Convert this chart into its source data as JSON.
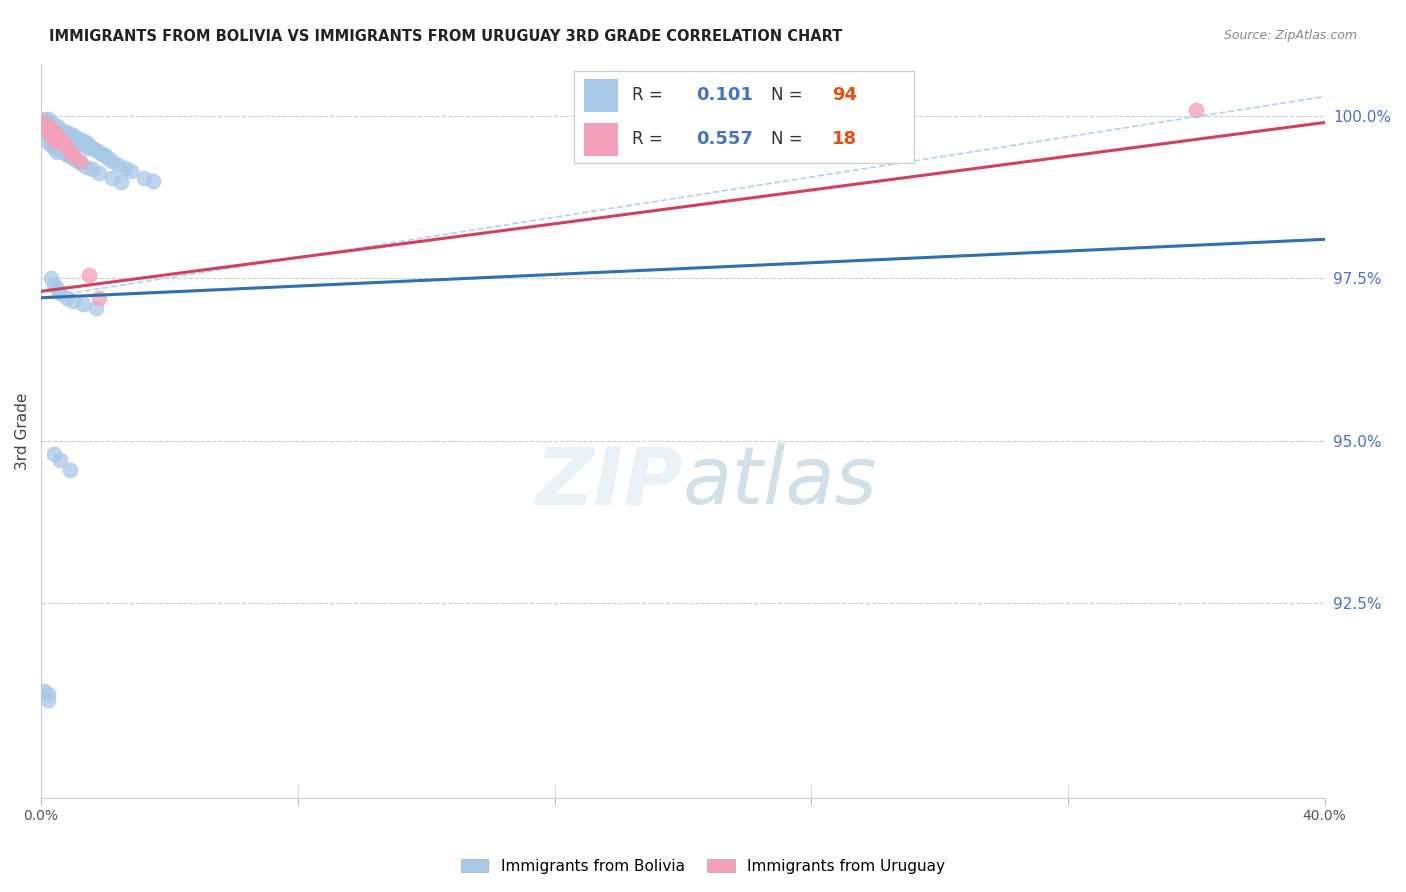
{
  "title": "IMMIGRANTS FROM BOLIVIA VS IMMIGRANTS FROM URUGUAY 3RD GRADE CORRELATION CHART",
  "source": "Source: ZipAtlas.com",
  "ylabel": "3rd Grade",
  "yticks": [
    "100.0%",
    "97.5%",
    "95.0%",
    "92.5%"
  ],
  "ytick_vals": [
    1.0,
    0.975,
    0.95,
    0.925
  ],
  "xlim": [
    0.0,
    0.4
  ],
  "ylim": [
    0.895,
    1.008
  ],
  "bolivia_R": 0.101,
  "bolivia_N": 94,
  "uruguay_R": 0.557,
  "uruguay_N": 18,
  "bolivia_color": "#a8c8e8",
  "uruguay_color": "#f4a0b8",
  "bolivia_line_color": "#3070b0",
  "uruguay_line_color": "#d04060",
  "dashed_line_color": "#a8c8e8",
  "background_color": "#ffffff",
  "bolivia_x": [
    0.001,
    0.001,
    0.001,
    0.002,
    0.002,
    0.002,
    0.002,
    0.003,
    0.003,
    0.003,
    0.003,
    0.003,
    0.004,
    0.004,
    0.004,
    0.004,
    0.005,
    0.005,
    0.005,
    0.005,
    0.005,
    0.006,
    0.006,
    0.006,
    0.006,
    0.007,
    0.007,
    0.007,
    0.008,
    0.008,
    0.008,
    0.009,
    0.009,
    0.01,
    0.01,
    0.01,
    0.011,
    0.011,
    0.012,
    0.012,
    0.013,
    0.013,
    0.014,
    0.014,
    0.015,
    0.015,
    0.016,
    0.017,
    0.018,
    0.019,
    0.02,
    0.021,
    0.022,
    0.024,
    0.026,
    0.028,
    0.032,
    0.035,
    0.002,
    0.002,
    0.003,
    0.003,
    0.004,
    0.004,
    0.005,
    0.005,
    0.006,
    0.007,
    0.008,
    0.009,
    0.01,
    0.011,
    0.012,
    0.014,
    0.016,
    0.018,
    0.022,
    0.025,
    0.003,
    0.004,
    0.005,
    0.006,
    0.008,
    0.01,
    0.013,
    0.017,
    0.001,
    0.002,
    0.004,
    0.006,
    0.009,
    0.002
  ],
  "bolivia_y": [
    0.9995,
    0.999,
    0.9985,
    0.9995,
    0.999,
    0.9985,
    0.998,
    0.999,
    0.9985,
    0.998,
    0.9975,
    0.997,
    0.9985,
    0.998,
    0.9975,
    0.997,
    0.9985,
    0.998,
    0.9975,
    0.997,
    0.9965,
    0.998,
    0.9975,
    0.997,
    0.9965,
    0.9975,
    0.997,
    0.9965,
    0.9975,
    0.997,
    0.9965,
    0.997,
    0.9965,
    0.997,
    0.9965,
    0.996,
    0.9965,
    0.996,
    0.9965,
    0.996,
    0.996,
    0.9955,
    0.996,
    0.9955,
    0.9955,
    0.995,
    0.995,
    0.9948,
    0.9945,
    0.9942,
    0.994,
    0.9935,
    0.993,
    0.9925,
    0.992,
    0.9915,
    0.9905,
    0.99,
    0.997,
    0.996,
    0.9965,
    0.9955,
    0.996,
    0.995,
    0.9955,
    0.9945,
    0.9948,
    0.9945,
    0.994,
    0.9938,
    0.9935,
    0.9932,
    0.9928,
    0.9922,
    0.9918,
    0.9912,
    0.9905,
    0.9898,
    0.975,
    0.974,
    0.9735,
    0.9728,
    0.972,
    0.9715,
    0.971,
    0.9705,
    0.9115,
    0.911,
    0.948,
    0.947,
    0.9455,
    0.91
  ],
  "uruguay_x": [
    0.001,
    0.002,
    0.002,
    0.003,
    0.003,
    0.004,
    0.004,
    0.005,
    0.005,
    0.006,
    0.007,
    0.008,
    0.009,
    0.01,
    0.012,
    0.015,
    0.018,
    0.36
  ],
  "uruguay_y": [
    0.999,
    0.9985,
    0.9975,
    0.998,
    0.997,
    0.9975,
    0.9965,
    0.997,
    0.996,
    0.9965,
    0.9958,
    0.9952,
    0.9945,
    0.994,
    0.993,
    0.9755,
    0.972,
    1.001
  ],
  "bolivia_trend_x": [
    0.0,
    0.4
  ],
  "bolivia_trend_y": [
    0.972,
    0.981
  ],
  "uruguay_trend_x": [
    0.0,
    0.4
  ],
  "uruguay_trend_y": [
    0.973,
    0.999
  ],
  "dashed_trend_x": [
    0.0,
    0.4
  ],
  "dashed_trend_y": [
    0.972,
    1.003
  ]
}
